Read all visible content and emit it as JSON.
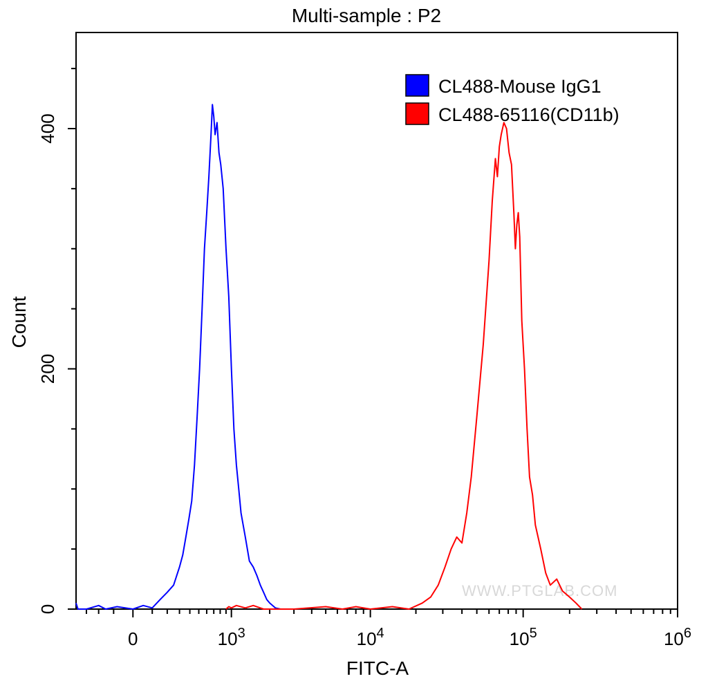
{
  "chart_data": {
    "type": "line",
    "title": "Multi-sample : P2",
    "xlabel": "FITC-A",
    "ylabel": "Count",
    "xscale": "biexponential",
    "xlim": [
      -400,
      1000000
    ],
    "ylim": [
      0,
      480
    ],
    "grid": false,
    "legend_position": "top-right",
    "y_ticks": [
      {
        "value": 0,
        "label": "0"
      },
      {
        "value": 200,
        "label": "200"
      },
      {
        "value": 400,
        "label": "400"
      }
    ],
    "x_ticks": [
      {
        "value": 0,
        "label": "0",
        "sup": ""
      },
      {
        "value": 1000,
        "label": "10",
        "sup": "3"
      },
      {
        "value": 10000,
        "label": "10",
        "sup": "4"
      },
      {
        "value": 100000,
        "label": "10",
        "sup": "5"
      },
      {
        "value": 1000000,
        "label": "10",
        "sup": "6"
      }
    ],
    "series": [
      {
        "name": "CL488-Mouse IgG1",
        "color": "#0000ff",
        "points": [
          [
            -400,
            5
          ],
          [
            -380,
            0
          ],
          [
            -300,
            0
          ],
          [
            -200,
            3
          ],
          [
            -150,
            0
          ],
          [
            -80,
            2
          ],
          [
            0,
            0
          ],
          [
            50,
            3
          ],
          [
            100,
            1
          ],
          [
            150,
            8
          ],
          [
            200,
            14
          ],
          [
            250,
            20
          ],
          [
            300,
            35
          ],
          [
            330,
            45
          ],
          [
            360,
            60
          ],
          [
            390,
            75
          ],
          [
            420,
            90
          ],
          [
            450,
            120
          ],
          [
            480,
            160
          ],
          [
            510,
            200
          ],
          [
            540,
            250
          ],
          [
            570,
            300
          ],
          [
            600,
            330
          ],
          [
            630,
            360
          ],
          [
            660,
            395
          ],
          [
            680,
            420
          ],
          [
            700,
            410
          ],
          [
            720,
            395
          ],
          [
            750,
            405
          ],
          [
            780,
            380
          ],
          [
            810,
            370
          ],
          [
            850,
            350
          ],
          [
            900,
            300
          ],
          [
            950,
            260
          ],
          [
            1000,
            200
          ],
          [
            1050,
            150
          ],
          [
            1100,
            120
          ],
          [
            1150,
            100
          ],
          [
            1200,
            80
          ],
          [
            1300,
            60
          ],
          [
            1400,
            40
          ],
          [
            1500,
            35
          ],
          [
            1600,
            28
          ],
          [
            1700,
            20
          ],
          [
            1800,
            14
          ],
          [
            1900,
            8
          ],
          [
            2000,
            5
          ],
          [
            2100,
            3
          ],
          [
            2200,
            1
          ],
          [
            2400,
            0
          ]
        ]
      },
      {
        "name": "CL488-65116(CD11b)",
        "color": "#ff0000",
        "points": [
          [
            900,
            0
          ],
          [
            950,
            2
          ],
          [
            1000,
            1
          ],
          [
            1100,
            3
          ],
          [
            1300,
            1
          ],
          [
            1500,
            3
          ],
          [
            1800,
            0
          ],
          [
            3000,
            0
          ],
          [
            5000,
            2
          ],
          [
            6500,
            0
          ],
          [
            8000,
            2
          ],
          [
            10000,
            0
          ],
          [
            14000,
            2
          ],
          [
            18000,
            0
          ],
          [
            22000,
            5
          ],
          [
            25000,
            10
          ],
          [
            28000,
            20
          ],
          [
            31000,
            35
          ],
          [
            34000,
            50
          ],
          [
            37000,
            60
          ],
          [
            40000,
            55
          ],
          [
            43000,
            80
          ],
          [
            46000,
            110
          ],
          [
            50000,
            160
          ],
          [
            55000,
            220
          ],
          [
            60000,
            290
          ],
          [
            63000,
            340
          ],
          [
            66000,
            375
          ],
          [
            68000,
            360
          ],
          [
            70000,
            385
          ],
          [
            72000,
            395
          ],
          [
            75000,
            405
          ],
          [
            78000,
            400
          ],
          [
            81000,
            380
          ],
          [
            84000,
            370
          ],
          [
            87000,
            330
          ],
          [
            89000,
            300
          ],
          [
            91000,
            320
          ],
          [
            93000,
            330
          ],
          [
            95000,
            310
          ],
          [
            98000,
            240
          ],
          [
            102000,
            200
          ],
          [
            106000,
            150
          ],
          [
            110000,
            110
          ],
          [
            115000,
            95
          ],
          [
            120000,
            70
          ],
          [
            130000,
            50
          ],
          [
            140000,
            30
          ],
          [
            150000,
            20
          ],
          [
            165000,
            25
          ],
          [
            180000,
            15
          ],
          [
            200000,
            10
          ],
          [
            220000,
            5
          ],
          [
            240000,
            0
          ]
        ]
      }
    ]
  },
  "watermark": "WWW.PTGLAB.COM"
}
